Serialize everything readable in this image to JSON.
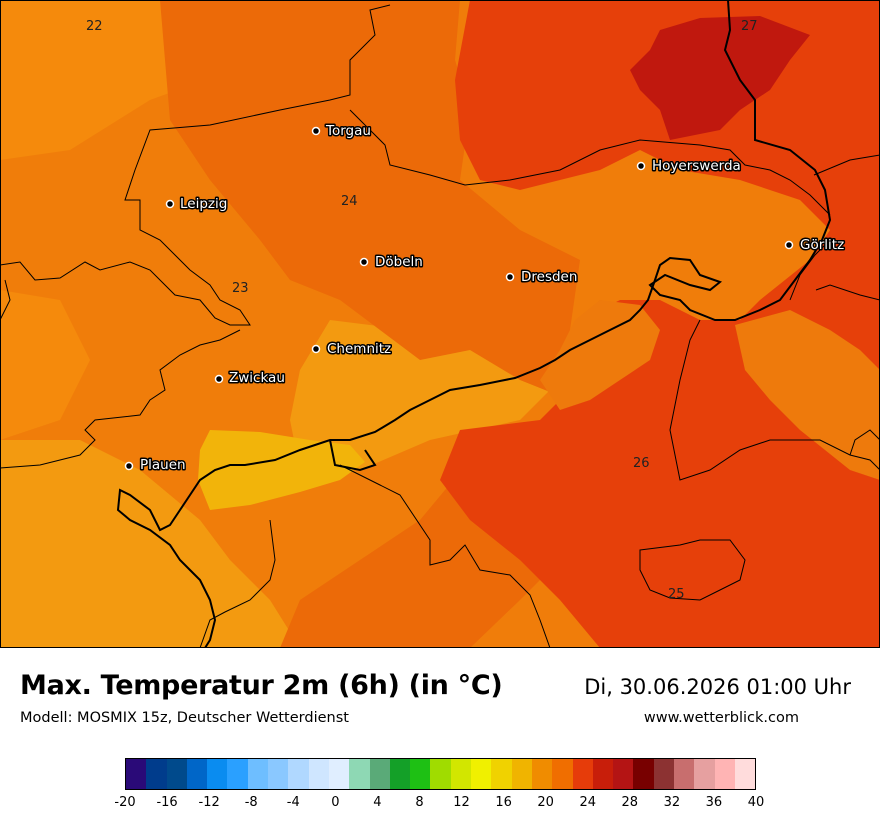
{
  "map": {
    "cities": [
      {
        "name": "Torgau"
      },
      {
        "name": "Leipzig"
      },
      {
        "name": "Döbeln"
      },
      {
        "name": "Dresden"
      },
      {
        "name": "Hoyerswerda"
      },
      {
        "name": "Görlitz"
      },
      {
        "name": "Chemnitz"
      },
      {
        "name": "Zwickau"
      },
      {
        "name": "Plauen"
      }
    ],
    "contour_labels": [
      "22",
      "27",
      "24",
      "23",
      "26",
      "25"
    ]
  },
  "header": {
    "title": "Max. Temperatur 2m (6h) (in °C)",
    "subtitle": "Modell: MOSMIX 15z, Deutscher Wetterdienst",
    "datetime": "Di, 30.06.2026 01:00 Uhr",
    "website": "www.wetterblick.com"
  },
  "legend": {
    "colors": [
      "#2a0a78",
      "#003c8c",
      "#004a8c",
      "#0066c8",
      "#0a8cf0",
      "#2aa0ff",
      "#6ebeff",
      "#8ac8ff",
      "#b0d8ff",
      "#cfe6ff",
      "#e0eeff",
      "#8ed8b4",
      "#5aaa78",
      "#14a028",
      "#1ec014",
      "#a0dc00",
      "#d2e600",
      "#f0f000",
      "#f0d200",
      "#f0b400",
      "#f08c00",
      "#f06e00",
      "#e63c0a",
      "#c81e0a",
      "#b41414",
      "#780000",
      "#8c3232",
      "#c86e6e",
      "#e6a0a0",
      "#ffb4b4",
      "#ffdcdc"
    ],
    "ticks": [
      "-20",
      "-16",
      "-12",
      "-8",
      "-4",
      "0",
      "4",
      "8",
      "12",
      "16",
      "20",
      "24",
      "28",
      "32",
      "36",
      "40"
    ]
  }
}
